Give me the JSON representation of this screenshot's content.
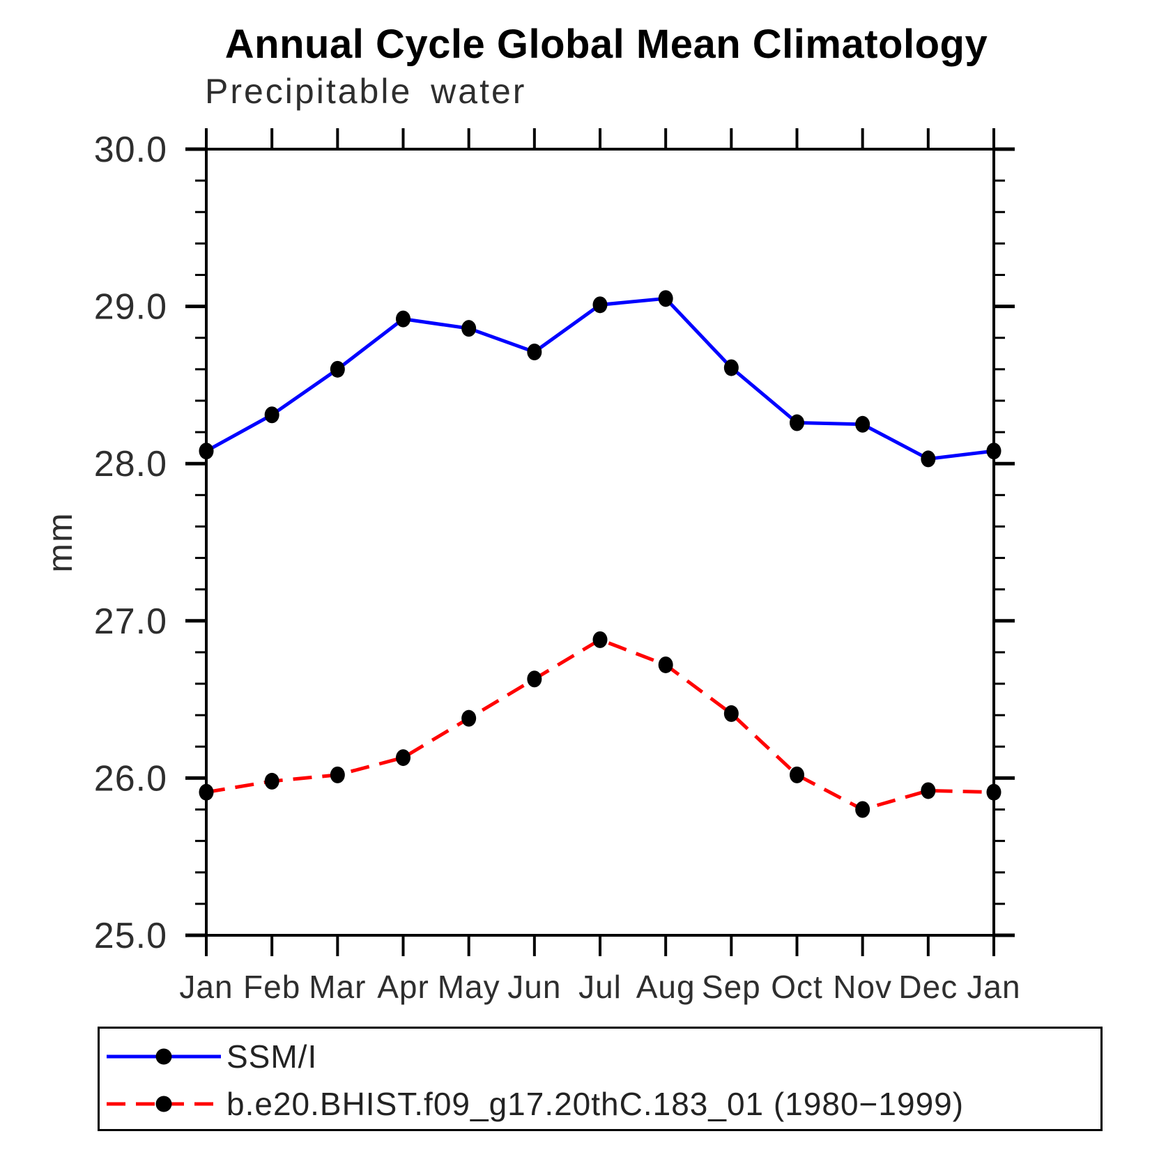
{
  "chart_data": {
    "type": "line",
    "title": "Annual Cycle Global Mean Climatology",
    "subtitle": "Precipitable water",
    "ylabel": "mm",
    "xlabel": "",
    "ylim": [
      25.0,
      30.0
    ],
    "ytick_interval": 1.0,
    "yminor_interval": 0.2,
    "ytick_labels": [
      "30.0",
      "29.0",
      "28.0",
      "27.0",
      "26.0",
      "25.0"
    ],
    "categories": [
      "Jan",
      "Feb",
      "Mar",
      "Apr",
      "May",
      "Jun",
      "Jul",
      "Aug",
      "Sep",
      "Oct",
      "Nov",
      "Dec",
      "Jan"
    ],
    "grid": false,
    "axis_color": "#000000",
    "legend_position": "bottom-left-box",
    "series": [
      {
        "name": "SSM/I",
        "color": "#0000ff",
        "style": "solid",
        "marker": "filled-circle",
        "marker_color": "#000000",
        "values": [
          28.08,
          28.31,
          28.6,
          28.92,
          28.86,
          28.71,
          29.01,
          29.05,
          28.61,
          28.26,
          28.25,
          28.03,
          28.08
        ]
      },
      {
        "name": "b.e20.BHIST.f09_g17.20thC.183_01 (1980−1999)",
        "color": "#ff0000",
        "style": "dashed",
        "marker": "filled-circle",
        "marker_color": "#000000",
        "values": [
          25.91,
          25.98,
          26.02,
          26.13,
          26.38,
          26.63,
          26.88,
          26.72,
          26.41,
          26.02,
          25.8,
          25.92,
          25.91
        ]
      }
    ]
  }
}
